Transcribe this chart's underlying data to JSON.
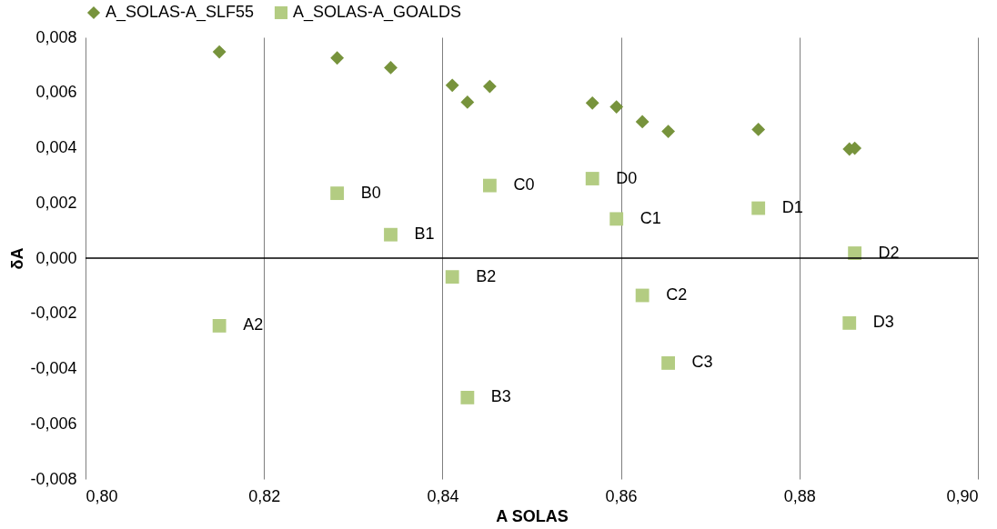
{
  "chart_data": {
    "type": "scatter",
    "xlabel": "A SOLAS",
    "ylabel": "δA",
    "legend": "top",
    "grid": "x",
    "xlim": [
      0.8,
      0.9
    ],
    "xticks": [
      {
        "value": 0.8,
        "label": "0,80"
      },
      {
        "value": 0.82,
        "label": "0,82"
      },
      {
        "value": 0.84,
        "label": "0,84"
      },
      {
        "value": 0.86,
        "label": "0,86"
      },
      {
        "value": 0.88,
        "label": "0,88"
      },
      {
        "value": 0.9,
        "label": "0,90"
      }
    ],
    "ylim": [
      -0.008,
      0.008
    ],
    "yticks": [
      {
        "value": -0.008,
        "label": "-0,008"
      },
      {
        "value": -0.006,
        "label": "-0,006"
      },
      {
        "value": -0.004,
        "label": "-0,004"
      },
      {
        "value": -0.002,
        "label": "-0,002"
      },
      {
        "value": 0,
        "label": "0,000"
      },
      {
        "value": 0.002,
        "label": "0,002"
      },
      {
        "value": 0.004,
        "label": "0,004"
      },
      {
        "value": 0.006,
        "label": "0,006"
      },
      {
        "value": 0.008,
        "label": "0,008"
      }
    ],
    "ref_lines": [
      {
        "axis": "y",
        "value": 0,
        "color": "#000000"
      }
    ],
    "series": [
      {
        "name": "A_SOLAS-A_SLF55",
        "color": "#77933c",
        "marker": "diamond",
        "x": [
          0.815,
          0.8282,
          0.8342,
          0.8411,
          0.8428,
          0.8453,
          0.8568,
          0.8595,
          0.8624,
          0.8653,
          0.8754,
          0.8856,
          0.8862
        ],
        "values": [
          0.00747,
          0.00725,
          0.0069,
          0.00626,
          0.00565,
          0.00622,
          0.00562,
          0.00548,
          0.00494,
          0.00459,
          0.00466,
          0.00395,
          0.00398
        ]
      },
      {
        "name": "A_SOLAS-A_GOALDS",
        "color": "#b3cc82",
        "marker": "square",
        "x": [
          0.815,
          0.8282,
          0.8342,
          0.8411,
          0.8428,
          0.8453,
          0.8568,
          0.8595,
          0.8624,
          0.8653,
          0.8754,
          0.8862,
          0.8856
        ],
        "values": [
          -0.00245,
          0.00235,
          0.00085,
          -0.00068,
          -0.00505,
          0.00263,
          0.00288,
          0.00142,
          -0.00135,
          -0.0038,
          0.00181,
          0.00018,
          -0.00235
        ]
      }
    ],
    "annotations": [
      {
        "text": "A2",
        "x": 0.815,
        "y": -0.00245
      },
      {
        "text": "B0",
        "x": 0.8282,
        "y": 0.00235
      },
      {
        "text": "B1",
        "x": 0.8342,
        "y": 0.00085
      },
      {
        "text": "B2",
        "x": 0.8411,
        "y": -0.00068
      },
      {
        "text": "B3",
        "x": 0.8428,
        "y": -0.00505
      },
      {
        "text": "C0",
        "x": 0.8453,
        "y": 0.00263
      },
      {
        "text": "D0",
        "x": 0.8568,
        "y": 0.00288
      },
      {
        "text": "C1",
        "x": 0.8595,
        "y": 0.00142
      },
      {
        "text": "C2",
        "x": 0.8624,
        "y": -0.00135
      },
      {
        "text": "C3",
        "x": 0.8653,
        "y": -0.0038
      },
      {
        "text": "D1",
        "x": 0.8754,
        "y": 0.00181
      },
      {
        "text": "D2",
        "x": 0.8862,
        "y": 0.00018
      },
      {
        "text": "D3",
        "x": 0.8856,
        "y": -0.00235
      }
    ]
  }
}
